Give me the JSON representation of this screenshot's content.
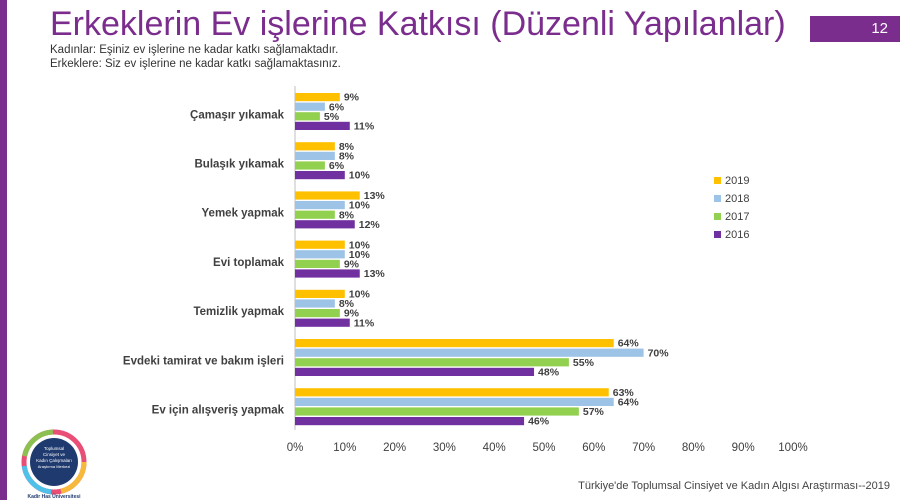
{
  "header": {
    "title": "Erkeklerin Ev işlerine Katkısı (Düzenli Yapılanlar)",
    "page_number": "12",
    "subtitle_line1": "Kadınlar: Eşiniz ev işlerine ne kadar katkı sağlamaktadır.",
    "subtitle_line2": "Erkeklere: Siz ev işlerine ne kadar katkı sağlamaktasınız."
  },
  "footer": {
    "source": "Türkiye'de Toplumsal Cinsiyet ve Kadın Algısı Araştırması--2019"
  },
  "logo": {
    "line1": "Toplumsal",
    "line2": "Cinsiyet ve",
    "line3": "Kadın Çalışmaları",
    "line4": "Araştırma Merkezi",
    "ring_text": "Kadir Has Üniversitesi"
  },
  "colors": {
    "2019": "#FFC000",
    "2018": "#9DC3E6",
    "2017": "#92D050",
    "2016": "#7030A0",
    "accent": "#7B2D8E"
  },
  "chart_data": {
    "type": "bar",
    "orientation": "horizontal",
    "categories": [
      "Çamaşır yıkamak",
      "Bulaşık yıkamak",
      "Yemek yapmak",
      "Evi toplamak",
      "Temizlik yapmak",
      "Evdeki tamirat ve bakım işleri",
      "Ev için alışveriş yapmak"
    ],
    "series": [
      {
        "name": "2019",
        "values": [
          9,
          8,
          13,
          10,
          10,
          64,
          63
        ]
      },
      {
        "name": "2018",
        "values": [
          6,
          8,
          10,
          10,
          8,
          70,
          64
        ]
      },
      {
        "name": "2017",
        "values": [
          5,
          6,
          8,
          9,
          9,
          55,
          57
        ]
      },
      {
        "name": "2016",
        "values": [
          11,
          10,
          12,
          13,
          11,
          48,
          46
        ]
      }
    ],
    "value_suffix": "%",
    "xlim": [
      0,
      100
    ],
    "xticks": [
      "0%",
      "10%",
      "20%",
      "30%",
      "40%",
      "50%",
      "60%",
      "70%",
      "80%",
      "90%",
      "100%"
    ],
    "legend_position": "right",
    "grid": false
  }
}
